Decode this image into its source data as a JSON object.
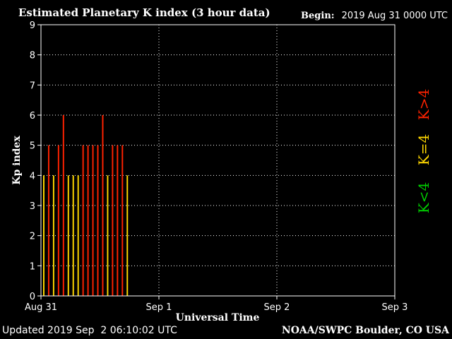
{
  "header": {
    "title": "Estimated Planetary K index (3 hour data)",
    "begin_label": "Begin:",
    "begin_value": "2019 Aug 31 0000 UTC"
  },
  "footer": {
    "updated_label": "Updated",
    "updated_value": "2019 Sep  2 06:10:02 UTC",
    "credit": "NOAA/SWPC Boulder, CO USA"
  },
  "chart_data": {
    "type": "bar",
    "title": "Estimated Planetary K index (3 hour data)",
    "xlabel": "Universal Time",
    "ylabel": "Kp index",
    "ylim": [
      0,
      9
    ],
    "yticks": [
      0,
      1,
      2,
      3,
      4,
      5,
      6,
      7,
      8,
      9
    ],
    "x_tick_labels": [
      "Aug 31",
      "Sep 1",
      "Sep 2",
      "Sep 3"
    ],
    "x_unit": "3-hour interval (24 intervals = 1 day)",
    "x_range": [
      0,
      72
    ],
    "values": [
      4,
      5,
      4,
      5,
      6,
      4,
      4,
      4,
      5,
      5,
      5,
      5,
      6,
      4,
      5,
      5,
      5,
      4
    ],
    "legend": [
      {
        "label": "K<4",
        "color": "#00cc00"
      },
      {
        "label": "K=4",
        "color": "#ffd700"
      },
      {
        "label": "K>4",
        "color": "#ff2200"
      }
    ],
    "colors": {
      "below": "#00cc00",
      "equal": "#ffd700",
      "above": "#ff2200"
    },
    "grid": "dotted",
    "legend_placement": "right"
  }
}
